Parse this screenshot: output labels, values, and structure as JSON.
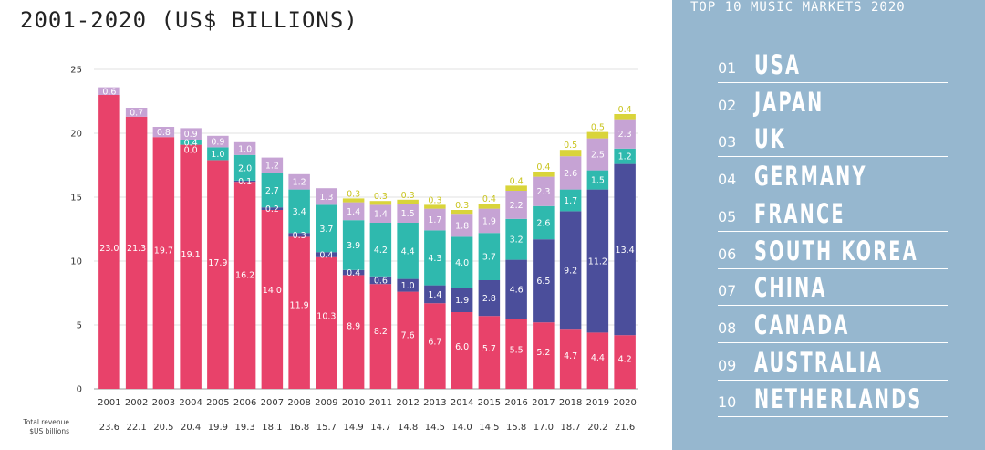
{
  "header": {
    "subtitle": "2001-2020 (US$ BILLIONS)"
  },
  "chart_data": {
    "type": "bar",
    "stacked": true,
    "categories": [
      "2001",
      "2002",
      "2003",
      "2004",
      "2005",
      "2006",
      "2007",
      "2008",
      "2009",
      "2010",
      "2011",
      "2012",
      "2013",
      "2014",
      "2015",
      "2016",
      "2017",
      "2018",
      "2019",
      "2020"
    ],
    "ylim": [
      0,
      25
    ],
    "yticks": [
      0,
      5,
      10,
      15,
      20,
      25
    ],
    "grid": true,
    "series": [
      {
        "color": "#e8426a",
        "values": [
          23.0,
          21.3,
          19.7,
          19.1,
          17.9,
          16.2,
          14.0,
          11.9,
          10.3,
          8.9,
          8.2,
          7.6,
          6.7,
          6.0,
          5.7,
          5.5,
          5.2,
          4.7,
          4.4,
          4.2
        ]
      },
      {
        "color": "#4b4e9b",
        "values": [
          0,
          0,
          0,
          0,
          0,
          0.1,
          0.2,
          0.3,
          0.4,
          0.4,
          0.6,
          1.0,
          1.4,
          1.9,
          2.8,
          4.6,
          6.5,
          9.2,
          11.2,
          13.4
        ]
      },
      {
        "color": "#2fb9ae",
        "values": [
          0,
          0,
          0,
          0.4,
          1.0,
          2.0,
          2.7,
          3.4,
          3.7,
          3.9,
          4.2,
          4.4,
          4.3,
          4.0,
          3.7,
          3.2,
          2.6,
          1.7,
          1.5,
          1.2
        ]
      },
      {
        "color": "#c6a3d4",
        "values": [
          0.6,
          0.7,
          0.8,
          0.9,
          0.9,
          1.0,
          1.2,
          1.2,
          1.3,
          1.4,
          1.4,
          1.5,
          1.7,
          1.8,
          1.9,
          2.2,
          2.3,
          2.6,
          2.5,
          2.3
        ]
      },
      {
        "color": "#d9d43a",
        "values": [
          0,
          0,
          0,
          0,
          0,
          0,
          0,
          0,
          0,
          0.3,
          0.3,
          0.3,
          0.3,
          0.3,
          0.4,
          0.4,
          0.4,
          0.5,
          0.5,
          0.4
        ]
      }
    ],
    "extra_labels": [
      {
        "category": "2004",
        "value": "0.0"
      }
    ],
    "totals_label_line1": "Total revenue",
    "totals_label_line2": "$US billions",
    "totals": [
      "23.6",
      "22.1",
      "20.5",
      "20.4",
      "19.9",
      "19.3",
      "18.1",
      "16.8",
      "15.7",
      "14.9",
      "14.7",
      "14.8",
      "14.5",
      "14.0",
      "14.5",
      "15.8",
      "17.0",
      "18.7",
      "20.2",
      "21.6"
    ]
  },
  "sidebar": {
    "title": "TOP 10 MUSIC MARKETS 2020",
    "markets": [
      {
        "rank": "01",
        "name": "USA"
      },
      {
        "rank": "02",
        "name": "JAPAN"
      },
      {
        "rank": "03",
        "name": "UK"
      },
      {
        "rank": "04",
        "name": "GERMANY"
      },
      {
        "rank": "05",
        "name": "FRANCE"
      },
      {
        "rank": "06",
        "name": "SOUTH KOREA"
      },
      {
        "rank": "07",
        "name": "CHINA"
      },
      {
        "rank": "08",
        "name": "CANADA"
      },
      {
        "rank": "09",
        "name": "AUSTRALIA"
      },
      {
        "rank": "10",
        "name": "NETHERLANDS"
      }
    ]
  }
}
